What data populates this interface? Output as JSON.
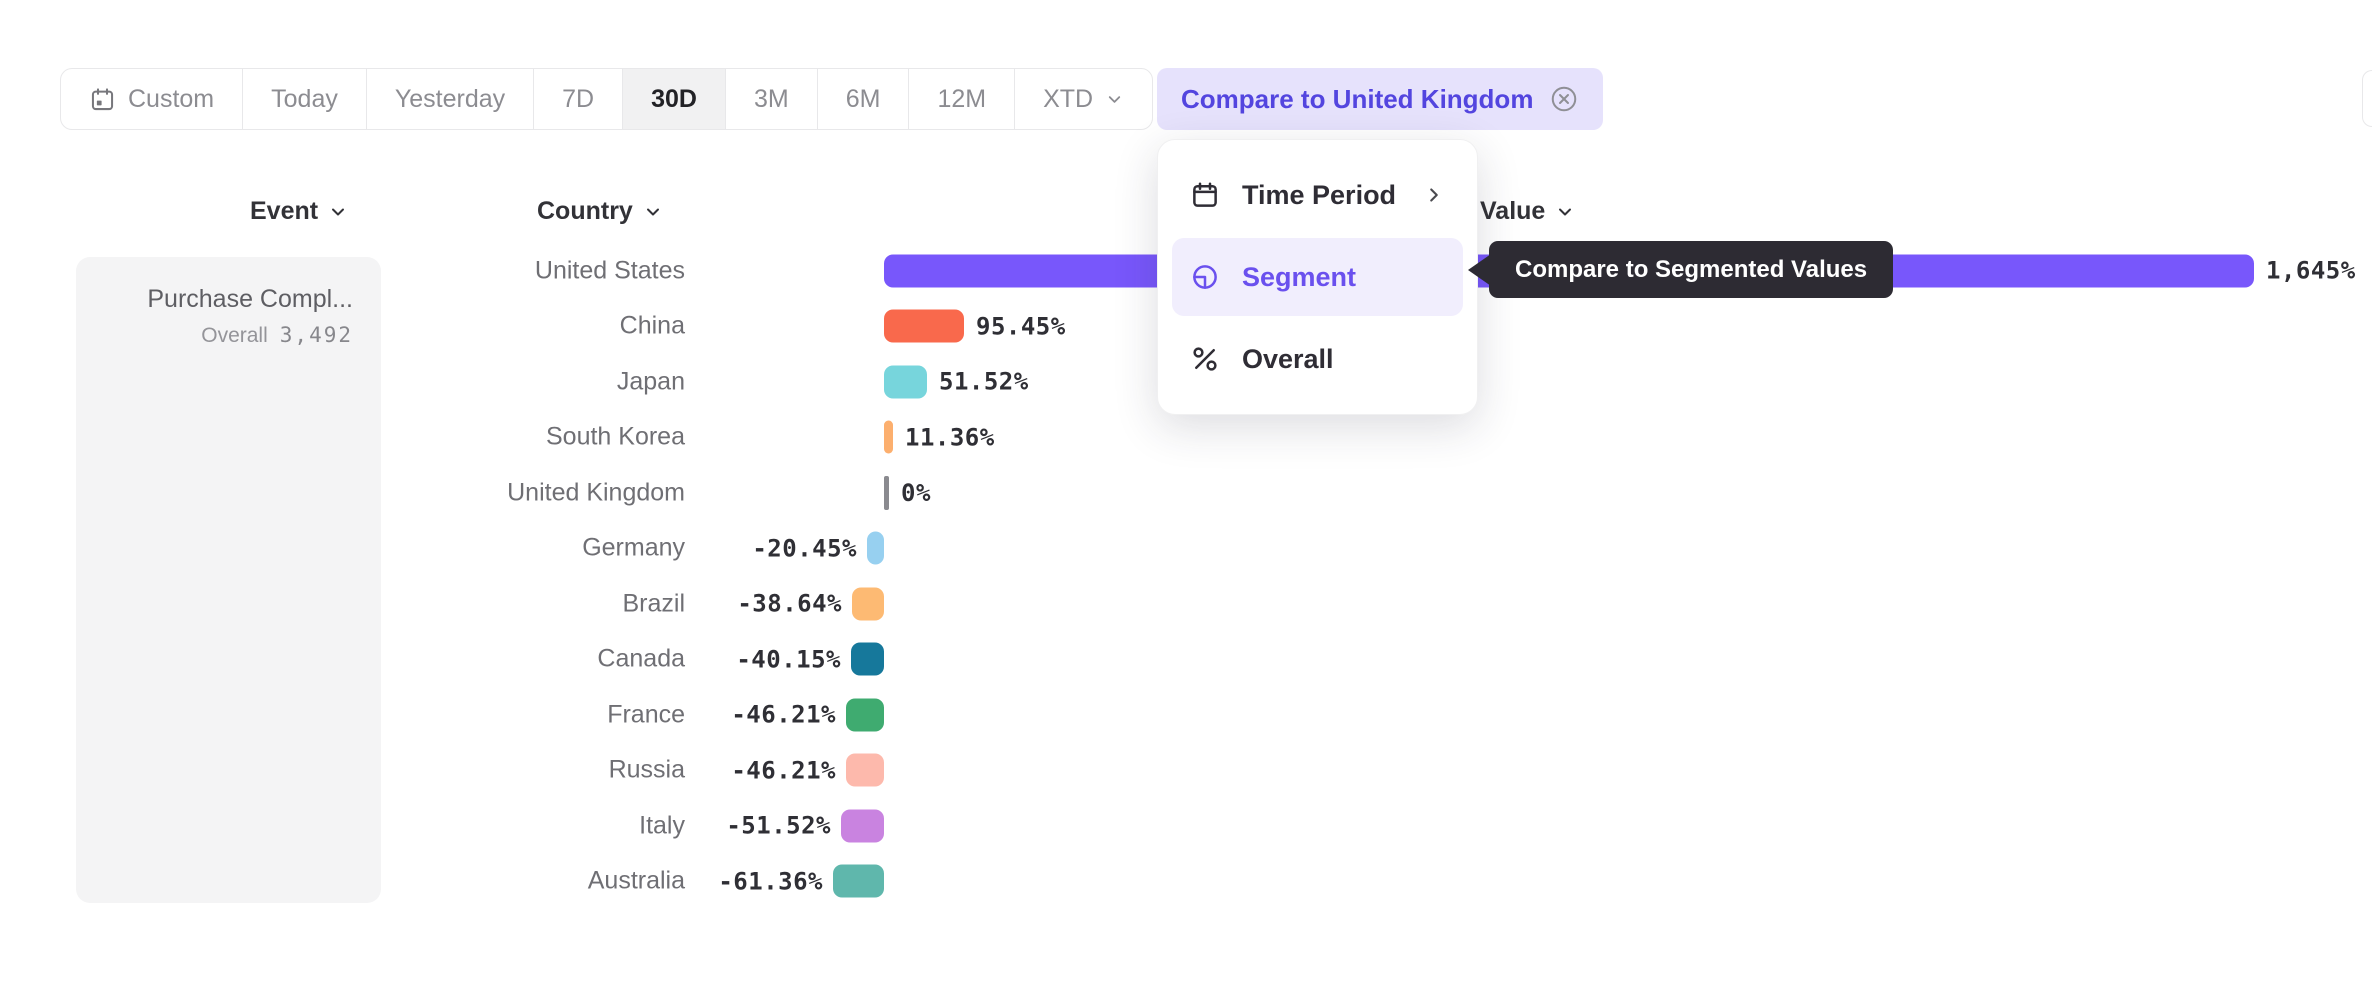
{
  "toolbar": {
    "buttons": [
      {
        "label": "Custom",
        "icon": "calendar-custom"
      },
      {
        "label": "Today"
      },
      {
        "label": "Yesterday"
      },
      {
        "label": "7D"
      },
      {
        "label": "30D",
        "selected": true
      },
      {
        "label": "3M"
      },
      {
        "label": "6M"
      },
      {
        "label": "12M"
      },
      {
        "label": "XTD",
        "chevron": true
      }
    ]
  },
  "compare_chip": {
    "label": "Compare to United Kingdom"
  },
  "menu": {
    "items": [
      {
        "label": "Time Period",
        "icon": "calendar",
        "has_submenu": true
      },
      {
        "label": "Segment",
        "icon": "segment",
        "selected": true
      },
      {
        "label": "Overall",
        "icon": "percent"
      }
    ]
  },
  "tooltip": {
    "text": "Compare to Segmented Values"
  },
  "columns": {
    "event": "Event",
    "country": "Country",
    "value": "Value"
  },
  "event_panel": {
    "name": "Purchase Compl...",
    "overall_label": "Overall",
    "overall_value": "3,492"
  },
  "chart_data": {
    "type": "bar",
    "orientation": "horizontal",
    "categories": [
      "United States",
      "China",
      "Japan",
      "South Korea",
      "United Kingdom",
      "Germany",
      "Brazil",
      "Canada",
      "France",
      "Russia",
      "Italy",
      "Australia"
    ],
    "values": [
      1645,
      95.45,
      51.52,
      11.36,
      0,
      -20.45,
      -38.64,
      -40.15,
      -46.21,
      -46.21,
      -51.52,
      -61.36
    ],
    "value_labels": [
      "1,645%",
      "95.45%",
      "51.52%",
      "11.36%",
      "0%",
      "-20.45%",
      "-38.64%",
      "-40.15%",
      "-46.21%",
      "-46.21%",
      "-51.52%",
      "-61.36%"
    ],
    "bar_colors": [
      "#7857FB",
      "#F9694C",
      "#77D5DC",
      "#FCAF6E",
      "#8A8A8F",
      "#97D0F0",
      "#FDBA73",
      "#16789B",
      "#3FAB70",
      "#FDB9AC",
      "#C983E0",
      "#5FB7AC"
    ],
    "patterns": [
      "solid",
      "solid",
      "solid",
      "solid",
      "tick",
      "dots",
      "dots",
      "solid",
      "solid",
      "solid",
      "solid",
      "solid"
    ],
    "xlim": [
      -61.36,
      1645
    ],
    "grid": false,
    "legend": false
  },
  "colors": {
    "accent_purple": "#5345DF",
    "chip_bg": "#E6E2FC",
    "menu_highlight_bg": "#F1EEFD",
    "menu_highlight_text": "#6A50EE",
    "tooltip_bg": "#2D2B33",
    "selected_range_bg": "#F1F1F2",
    "axis_tick": "#8A8A8F",
    "panel_bg": "#F4F4F5"
  }
}
